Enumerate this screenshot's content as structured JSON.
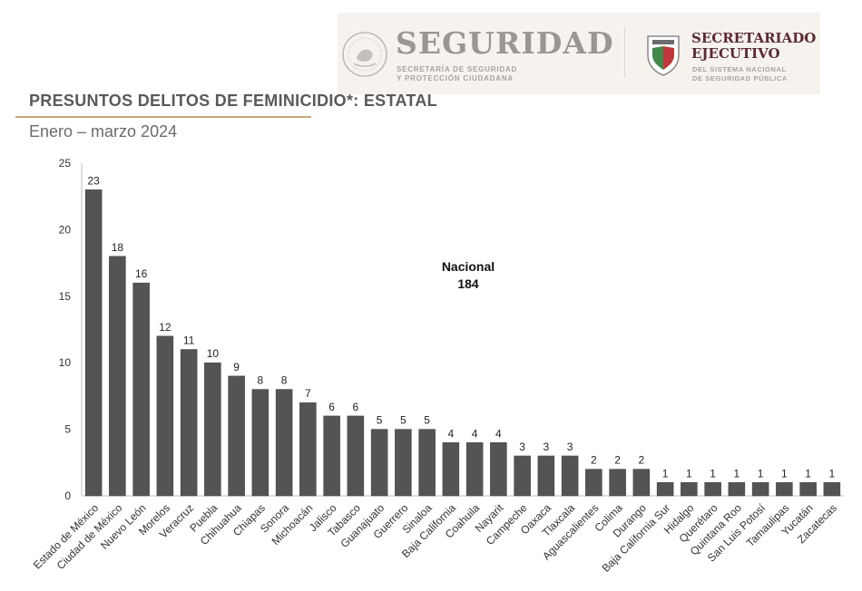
{
  "header": {
    "seguridad": "SEGURIDAD",
    "seguridad_sub_1": "SECRETARÍA DE SEGURIDAD",
    "seguridad_sub_2": "Y PROTECCIÓN CIUDADANA",
    "secretariado_1": "SECRETARIADO",
    "secretariado_2": "EJECUTIVO",
    "se_sub_1": "DEL SISTEMA NACIONAL",
    "se_sub_2": "DE SEGURIDAD PÚBLICA"
  },
  "page": {
    "title": "PRESUNTOS DELITOS DE FEMINICIDIO*: ESTATAL",
    "subtitle": "Enero – marzo 2024"
  },
  "colors": {
    "bar": "#545454",
    "bar_edge": "#3e3e3e",
    "accent": "#c8a977"
  },
  "chart_data": {
    "type": "bar",
    "title": "PRESUNTOS DELITOS DE FEMINICIDIO*: ESTATAL",
    "subtitle": "Enero – marzo 2024",
    "xlabel": "",
    "ylabel": "",
    "ylim": [
      0,
      25
    ],
    "yticks": [
      0,
      5,
      10,
      15,
      20,
      25
    ],
    "grid": false,
    "annotation": {
      "label": "Nacional",
      "value": "184"
    },
    "categories": [
      "Estado de México",
      "Ciudad de México",
      "Nuevo León",
      "Morelos",
      "Veracruz",
      "Puebla",
      "Chihuahua",
      "Chiapas",
      "Sonora",
      "Michoacán",
      "Jalisco",
      "Tabasco",
      "Guanajuato",
      "Guerrero",
      "Sinaloa",
      "Baja California",
      "Coahuila",
      "Nayarit",
      "Campeche",
      "Oaxaca",
      "Tlaxcala",
      "Aguascalientes",
      "Colima",
      "Durango",
      "Baja California Sur",
      "Hidalgo",
      "Querétaro",
      "Quintana Roo",
      "San Luis Potosí",
      "Tamaulipas",
      "Yucatán",
      "Zacatecas"
    ],
    "values": [
      23,
      18,
      16,
      12,
      11,
      10,
      9,
      8,
      8,
      7,
      6,
      6,
      5,
      5,
      5,
      4,
      4,
      4,
      3,
      3,
      3,
      2,
      2,
      2,
      1,
      1,
      1,
      1,
      1,
      1,
      1,
      1
    ]
  }
}
